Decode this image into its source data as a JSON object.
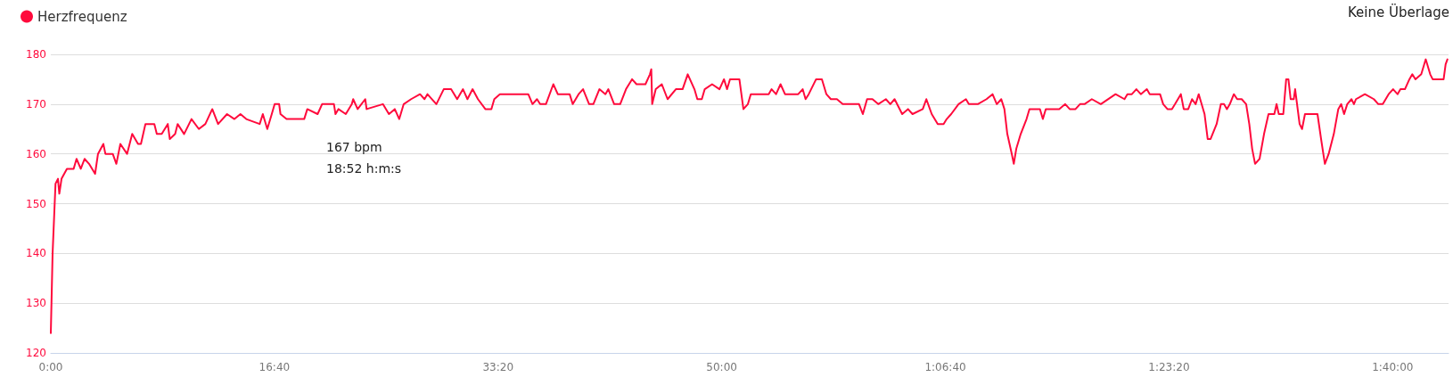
{
  "chart_data": {
    "type": "line",
    "legend": "top left",
    "grid": "y",
    "marker": "none",
    "line_style": "solid",
    "annotations": [
      "Keine Überlage",
      "167 bpm",
      "18:52 h:m:s"
    ],
    "xlim": [
      0,
      6250
    ],
    "xticks": [
      {
        "value": 0,
        "label": "0:00"
      },
      {
        "value": 1000,
        "label": "16:40"
      },
      {
        "value": 2000,
        "label": "33:20"
      },
      {
        "value": 3000,
        "label": "50:00"
      },
      {
        "value": 4000,
        "label": "1:06:40"
      },
      {
        "value": 5000,
        "label": "1:23:20"
      },
      {
        "value": 6000,
        "label": "1:40:00"
      }
    ],
    "ylim": [
      120,
      180
    ],
    "yticks": [
      120,
      130,
      140,
      150,
      160,
      170,
      180
    ],
    "series": [
      {
        "name": "Herzfrequenz",
        "color": "#ff0a3c",
        "x": [
          0,
          8,
          21,
          32,
          38,
          48,
          72,
          102,
          115,
          134,
          151,
          171,
          198,
          211,
          235,
          244,
          277,
          293,
          311,
          341,
          364,
          390,
          403,
          423,
          463,
          474,
          496,
          523,
          532,
          556,
          567,
          596,
          629,
          662,
          691,
          722,
          748,
          788,
          821,
          848,
          874,
          934,
          948,
          968,
          988,
          1001,
          1021,
          1027,
          1054,
          1133,
          1147,
          1193,
          1213,
          1266,
          1273,
          1286,
          1319,
          1346,
          1352,
          1372,
          1406,
          1412,
          1485,
          1512,
          1538,
          1558,
          1578,
          1611,
          1651,
          1671,
          1684,
          1724,
          1757,
          1790,
          1817,
          1843,
          1863,
          1886,
          1910,
          1943,
          1970,
          1983,
          2008,
          2042,
          2135,
          2154,
          2174,
          2188,
          2214,
          2247,
          2267,
          2287,
          2320,
          2334,
          2360,
          2380,
          2407,
          2426,
          2453,
          2480,
          2493,
          2519,
          2546,
          2572,
          2599,
          2619,
          2659,
          2679,
          2685,
          2689,
          2705,
          2732,
          2758,
          2795,
          2825,
          2848,
          2878,
          2891,
          2911,
          2924,
          2957,
          2990,
          3010,
          3024,
          3037,
          3079,
          3097,
          3117,
          3130,
          3143,
          3210,
          3223,
          3243,
          3263,
          3283,
          3342,
          3362,
          3375,
          3389,
          3422,
          3448,
          3468,
          3488,
          3515,
          3541,
          3568,
          3614,
          3631,
          3650,
          3674,
          3700,
          3734,
          3754,
          3773,
          3807,
          3833,
          3853,
          3899,
          3915,
          3939,
          3966,
          3992,
          4006,
          4026,
          4059,
          4092,
          4105,
          4145,
          4184,
          4211,
          4230,
          4250,
          4264,
          4277,
          4297,
          4306,
          4317,
          4337,
          4363,
          4376,
          4423,
          4436,
          4449,
          4509,
          4536,
          4556,
          4582,
          4602,
          4622,
          4655,
          4695,
          4761,
          4801,
          4814,
          4834,
          4854,
          4874,
          4901,
          4914,
          4960,
          4974,
          4993,
          5013,
          5027,
          5053,
          5066,
          5086,
          5103,
          5119,
          5133,
          5159,
          5173,
          5186,
          5213,
          5232,
          5246,
          5259,
          5272,
          5290,
          5305,
          5325,
          5345,
          5359,
          5372,
          5385,
          5405,
          5425,
          5445,
          5471,
          5481,
          5491,
          5511,
          5524,
          5534,
          5544,
          5558,
          5564,
          5584,
          5595,
          5608,
          5631,
          5664,
          5680,
          5697,
          5714,
          5737,
          5757,
          5770,
          5783,
          5797,
          5816,
          5827,
          5836,
          5876,
          5916,
          5936,
          5956,
          5982,
          6002,
          6022,
          6035,
          6055,
          6075,
          6088,
          6102,
          6128,
          6148,
          6168,
          6179,
          6228,
          6237,
          6245
        ],
        "values": [
          124,
          140,
          154,
          155,
          152,
          155,
          157,
          157,
          159,
          157,
          159,
          158,
          156,
          160,
          162,
          160,
          160,
          158,
          162,
          160,
          164,
          162,
          162,
          166,
          166,
          164,
          164,
          166,
          163,
          164,
          166,
          164,
          167,
          165,
          166,
          169,
          166,
          168,
          167,
          168,
          167,
          166,
          168,
          165,
          168,
          170,
          170,
          168,
          167,
          167,
          169,
          168,
          170,
          170,
          168,
          169,
          168,
          170,
          171,
          169,
          171,
          169,
          170,
          168,
          169,
          167,
          170,
          171,
          172,
          171,
          172,
          170,
          173,
          173,
          171,
          173,
          171,
          173,
          171,
          169,
          169,
          171,
          172,
          172,
          172,
          170,
          171,
          170,
          170,
          174,
          172,
          172,
          172,
          170,
          172,
          173,
          170,
          170,
          173,
          172,
          173,
          170,
          170,
          173,
          175,
          174,
          174,
          176,
          177,
          170,
          173,
          174,
          171,
          173,
          173,
          176,
          173,
          171,
          171,
          173,
          174,
          173,
          175,
          173,
          175,
          175,
          169,
          170,
          172,
          172,
          172,
          173,
          172,
          174,
          172,
          172,
          173,
          171,
          172,
          175,
          175,
          172,
          171,
          171,
          170,
          170,
          170,
          168,
          171,
          171,
          170,
          171,
          170,
          171,
          168,
          169,
          168,
          169,
          171,
          168,
          166,
          166,
          167,
          168,
          170,
          171,
          170,
          170,
          171,
          172,
          170,
          171,
          169,
          164,
          160,
          158,
          161,
          164,
          167,
          169,
          169,
          167,
          169,
          169,
          170,
          169,
          169,
          170,
          170,
          171,
          170,
          172,
          171,
          172,
          172,
          173,
          172,
          173,
          172,
          172,
          170,
          169,
          169,
          170,
          172,
          169,
          169,
          171,
          170,
          172,
          168,
          163,
          163,
          166,
          170,
          170,
          169,
          170,
          172,
          171,
          171,
          170,
          166,
          161,
          158,
          159,
          164,
          168,
          168,
          170,
          168,
          168,
          175,
          175,
          171,
          171,
          173,
          166,
          165,
          168,
          168,
          168,
          163,
          158,
          160,
          164,
          169,
          170,
          168,
          170,
          171,
          170,
          171,
          172,
          171,
          170,
          170,
          172,
          173,
          172,
          173,
          173,
          175,
          176,
          175,
          176,
          179,
          176,
          175,
          175,
          178,
          179
        ]
      }
    ]
  }
}
